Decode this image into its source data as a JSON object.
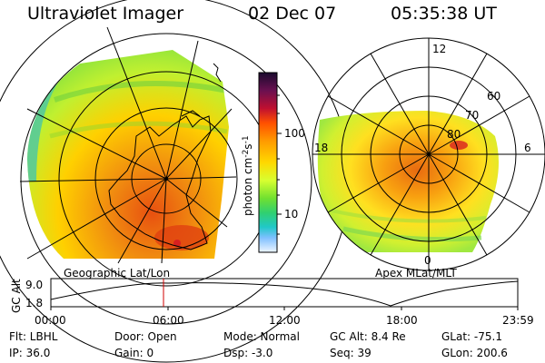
{
  "header": {
    "instrument": "Ultraviolet Imager",
    "date": "02 Dec 07",
    "time": "05:35:38 UT"
  },
  "colorbar": {
    "unit": "photon cm",
    "unit_sup1": "-2",
    "unit_mid": "s",
    "unit_sup2": "-1",
    "tick_100": "100",
    "tick_10": "10",
    "colors": [
      "#1a0a2e",
      "#5a1050",
      "#a0103c",
      "#d82020",
      "#ff6a00",
      "#ffa000",
      "#ffd000",
      "#e0ff30",
      "#80e030",
      "#30d060",
      "#20c8c0",
      "#40a0ff",
      "#b0e0ff",
      "#e8f4ff"
    ]
  },
  "left_panel": {
    "label": "Geographic Lat/Lon"
  },
  "right_panel": {
    "label": "Apex MLat/MLT",
    "mlt_labels": {
      "top": "12",
      "left": "18",
      "right": "6",
      "bottom": "0"
    },
    "lat_labels": [
      "60",
      "70",
      "80"
    ]
  },
  "altitude_plot": {
    "ylabel": "GC Alt",
    "ytick_top": "9.0",
    "ytick_bottom": "1.8",
    "xticks": [
      "00:00",
      "06:00",
      "12:00",
      "18:00",
      "23:59"
    ],
    "marker_color": "#d00000"
  },
  "info": {
    "filter": "Flt: LBHL",
    "ip": "IP: 36.0",
    "door": "Door: Open",
    "gain": "Gain:  0",
    "mode": "Mode: Normal",
    "dsp": "Dsp:   -3.0",
    "gc_alt": "GC Alt: 8.4 Re",
    "seq": "Seq: 39",
    "glat": "GLat:  -75.1",
    "glon": "GLon: 200.6"
  }
}
